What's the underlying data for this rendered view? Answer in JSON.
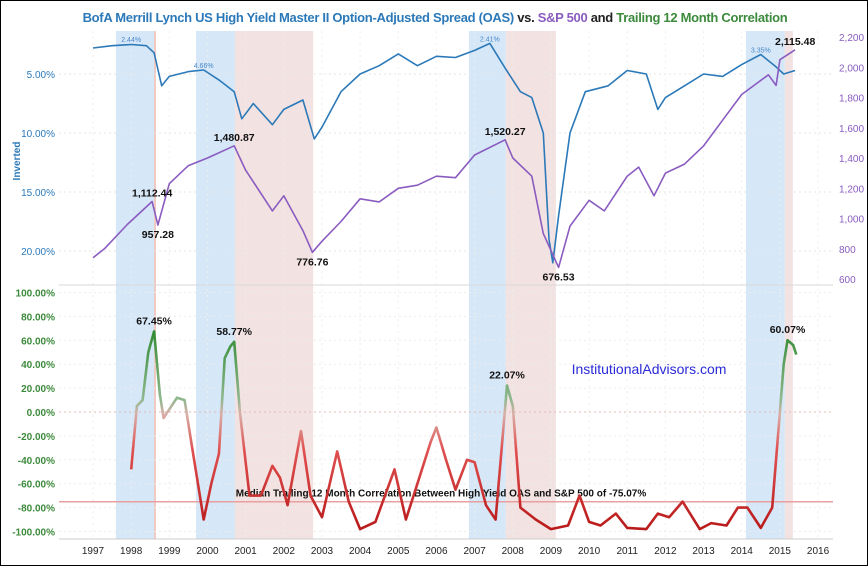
{
  "chart_data": [
    {
      "type": "line",
      "title_parts": [
        "BofA Merrill Lynch US High Yield Master II Option-Adjusted Spread (OAS)",
        " vs. ",
        "S&P 500",
        " and ",
        "Trailing 12 Month Correlation"
      ],
      "left_axis": {
        "label": "Inverted",
        "ticks": [
          "5.00%",
          "10.00%",
          "15.00%",
          "20.00%"
        ],
        "tick_values": [
          5,
          10,
          15,
          20
        ],
        "inverted": true,
        "color": "#2b79b8"
      },
      "right_axis": {
        "ticks": [
          "2,200",
          "2,000",
          "1,800",
          "1,600",
          "1,400",
          "1,200",
          "1,000",
          "800",
          "600"
        ],
        "tick_values": [
          2200,
          2000,
          1800,
          1600,
          1400,
          1200,
          1000,
          800,
          600
        ],
        "color": "#8a5cc0"
      },
      "series": [
        {
          "key": "oas",
          "color": "#2b79b8",
          "axis": "left",
          "x": [
            1997.0,
            1997.5,
            1998.0,
            1998.4,
            1998.6,
            1998.8,
            1999.0,
            1999.5,
            1999.9,
            2000.3,
            2000.7,
            2000.9,
            2001.2,
            2001.7,
            2002.0,
            2002.5,
            2002.8,
            2003.0,
            2003.5,
            2004.0,
            2004.5,
            2005.0,
            2005.5,
            2006.0,
            2006.5,
            2007.0,
            2007.4,
            2007.8,
            2008.2,
            2008.5,
            2008.8,
            2008.95,
            2009.05,
            2009.2,
            2009.5,
            2009.9,
            2010.5,
            2011.0,
            2011.5,
            2011.8,
            2012.0,
            2012.5,
            2013.0,
            2013.5,
            2014.0,
            2014.5,
            2014.9,
            2015.1,
            2015.4
          ],
          "y": [
            2.8,
            2.6,
            2.5,
            2.6,
            3.2,
            6.0,
            5.2,
            4.8,
            4.66,
            5.5,
            6.5,
            8.8,
            7.5,
            9.3,
            8.0,
            7.2,
            10.5,
            9.5,
            6.5,
            5.0,
            4.3,
            3.3,
            4.3,
            3.5,
            3.6,
            3.0,
            2.41,
            4.5,
            6.5,
            7.0,
            10.0,
            19.0,
            21.0,
            17.0,
            10.0,
            6.5,
            6.0,
            4.7,
            5.0,
            8.0,
            7.0,
            6.0,
            5.0,
            5.2,
            4.2,
            3.35,
            4.4,
            5.0,
            4.7
          ]
        },
        {
          "key": "spx",
          "color": "#8a5cc0",
          "axis": "right",
          "x": [
            1997.0,
            1997.3,
            1997.9,
            1998.55,
            1998.7,
            1999.0,
            1999.5,
            2000.0,
            2000.7,
            2001.0,
            2001.7,
            2002.0,
            2002.5,
            2002.75,
            2003.0,
            2003.5,
            2004.0,
            2004.5,
            2005.0,
            2005.5,
            2006.0,
            2006.5,
            2007.0,
            2007.8,
            2008.0,
            2008.5,
            2008.8,
            2009.2,
            2009.5,
            2010.0,
            2010.4,
            2011.0,
            2011.3,
            2011.7,
            2012.0,
            2012.5,
            2013.0,
            2013.5,
            2014.0,
            2014.7,
            2014.9,
            2015.0,
            2015.4
          ],
          "y": [
            740,
            800,
            960,
            1112.44,
            957.28,
            1230,
            1350,
            1400,
            1480.87,
            1320,
            1050,
            1150,
            920,
            776.76,
            850,
            980,
            1130,
            1110,
            1200,
            1220,
            1280,
            1270,
            1420,
            1520.27,
            1400,
            1280,
            900,
            676.53,
            950,
            1120,
            1050,
            1280,
            1340,
            1150,
            1300,
            1360,
            1480,
            1650,
            1820,
            1950,
            1880,
            2050,
            2115.48
          ]
        }
      ],
      "annotations": [
        {
          "text": "2.44%",
          "x": 1998.0,
          "y": 2.44,
          "axis": "left",
          "small": true
        },
        {
          "text": "4.66%",
          "x": 1999.9,
          "y": 4.66,
          "axis": "left",
          "small": true
        },
        {
          "text": "2.41%",
          "x": 2007.4,
          "y": 2.41,
          "axis": "left",
          "small": true
        },
        {
          "text": "3.35%",
          "x": 2014.5,
          "y": 3.35,
          "axis": "left",
          "small": true
        },
        {
          "text": "1,112.44",
          "x": 1998.55,
          "y": 1112.44,
          "axis": "right"
        },
        {
          "text": "957.28",
          "x": 1998.7,
          "y": 957.28,
          "axis": "right",
          "below": true
        },
        {
          "text": "1,480.87",
          "x": 2000.7,
          "y": 1480.87,
          "axis": "right"
        },
        {
          "text": "776.76",
          "x": 2002.75,
          "y": 776.76,
          "axis": "right",
          "below": true
        },
        {
          "text": "1,520.27",
          "x": 2007.8,
          "y": 1520.27,
          "axis": "right"
        },
        {
          "text": "676.53",
          "x": 2009.2,
          "y": 676.53,
          "axis": "right",
          "below": true
        },
        {
          "text": "2,115.48",
          "x": 2015.4,
          "y": 2115.48,
          "axis": "right"
        }
      ],
      "shaded_regions": [
        {
          "from": 1997.6,
          "to": 1998.6,
          "color": "#d6e7f8"
        },
        {
          "from": 1998.6,
          "to": 1998.65,
          "color": "#f0c8c0"
        },
        {
          "from": 1999.7,
          "to": 2000.72,
          "color": "#d6e7f8"
        },
        {
          "from": 2000.72,
          "to": 2002.77,
          "color": "#f3e2e2"
        },
        {
          "from": 2006.85,
          "to": 2007.82,
          "color": "#d6e7f8"
        },
        {
          "from": 2007.82,
          "to": 2009.13,
          "color": "#f3e2e2"
        },
        {
          "from": 2014.11,
          "to": 2015.13,
          "color": "#d6e7f8"
        },
        {
          "from": 2015.13,
          "to": 2015.34,
          "color": "#f3e2e2"
        }
      ]
    },
    {
      "type": "line",
      "y_axis": {
        "ticks": [
          "100.00%",
          "80.00%",
          "60.00%",
          "40.00%",
          "20.00%",
          "0.00%",
          "-20.00%",
          "-40.00%",
          "-60.00%",
          "-80.00%",
          "-100.00%"
        ],
        "tick_values": [
          100,
          80,
          60,
          40,
          20,
          0,
          -20,
          -40,
          -60,
          -80,
          -100
        ],
        "ylim": [
          -100,
          100
        ],
        "color": "#3c8a3c"
      },
      "x_axis": {
        "ticks": [
          "1997",
          "1998",
          "1999",
          "2000",
          "2001",
          "2002",
          "2003",
          "2004",
          "2005",
          "2006",
          "2007",
          "2008",
          "2009",
          "2010",
          "2011",
          "2012",
          "2013",
          "2014",
          "2015",
          "2016"
        ],
        "tick_values": [
          1997,
          1998,
          1999,
          2000,
          2001,
          2002,
          2003,
          2004,
          2005,
          2006,
          2007,
          2008,
          2009,
          2010,
          2011,
          2012,
          2013,
          2014,
          2015,
          2016
        ]
      },
      "series": [
        {
          "key": "correlation",
          "colors": {
            "positive": "#2f8a2f",
            "zero": "#d8b0a8",
            "negative": "#b81818"
          },
          "x": [
            1998.0,
            1998.15,
            1998.3,
            1998.45,
            1998.6,
            1998.75,
            1998.85,
            1999.2,
            1999.4,
            1999.6,
            1999.9,
            2000.1,
            2000.3,
            2000.45,
            2000.6,
            2000.7,
            2000.85,
            2001.1,
            2001.4,
            2001.7,
            2001.9,
            2002.1,
            2002.45,
            2002.7,
            2003.0,
            2003.4,
            2003.7,
            2004.0,
            2004.4,
            2004.9,
            2005.2,
            2005.5,
            2005.85,
            2006.0,
            2006.25,
            2006.5,
            2006.8,
            2007.0,
            2007.3,
            2007.55,
            2007.85,
            2008.0,
            2008.2,
            2008.6,
            2009.0,
            2009.45,
            2009.75,
            2010.0,
            2010.3,
            2010.7,
            2011.0,
            2011.5,
            2011.8,
            2012.1,
            2012.45,
            2012.9,
            2013.2,
            2013.6,
            2013.9,
            2014.15,
            2014.5,
            2014.8,
            2015.0,
            2015.1,
            2015.2,
            2015.35,
            2015.43
          ],
          "y": [
            -48,
            5,
            10,
            50,
            67.45,
            15,
            -5,
            12,
            10,
            -30,
            -90,
            -60,
            -35,
            45,
            55,
            58.77,
            0,
            -70,
            -70,
            -45,
            -55,
            -78,
            -16,
            -70,
            -88,
            -33,
            -75,
            -98,
            -92,
            -48,
            -90,
            -60,
            -25,
            -13,
            -40,
            -65,
            -40,
            -42,
            -78,
            -90,
            22.07,
            5,
            -80,
            -90,
            -98,
            -95,
            -70,
            -92,
            -95,
            -85,
            -97,
            -98,
            -85,
            -88,
            -75,
            -98,
            -93,
            -95,
            -80,
            -80,
            -97,
            -80,
            0,
            40,
            60.07,
            56,
            48
          ]
        }
      ],
      "annotations": [
        {
          "text": "67.45%",
          "x": 1998.6,
          "y": 67.45
        },
        {
          "text": "58.77%",
          "x": 2000.7,
          "y": 58.77
        },
        {
          "text": "22.07%",
          "x": 2007.85,
          "y": 22.07
        },
        {
          "text": "60.07%",
          "x": 2015.2,
          "y": 60.07
        }
      ],
      "reference_line": {
        "value": -75.07,
        "label": "Median Trailing 12 Month Correlation Between High Yield OAS and S&P 500 of -75.07%",
        "color": "#e8a0a0"
      },
      "watermark": {
        "text": "InstitutionalAdvisors.com",
        "color": "#2a2ad8"
      }
    }
  ]
}
